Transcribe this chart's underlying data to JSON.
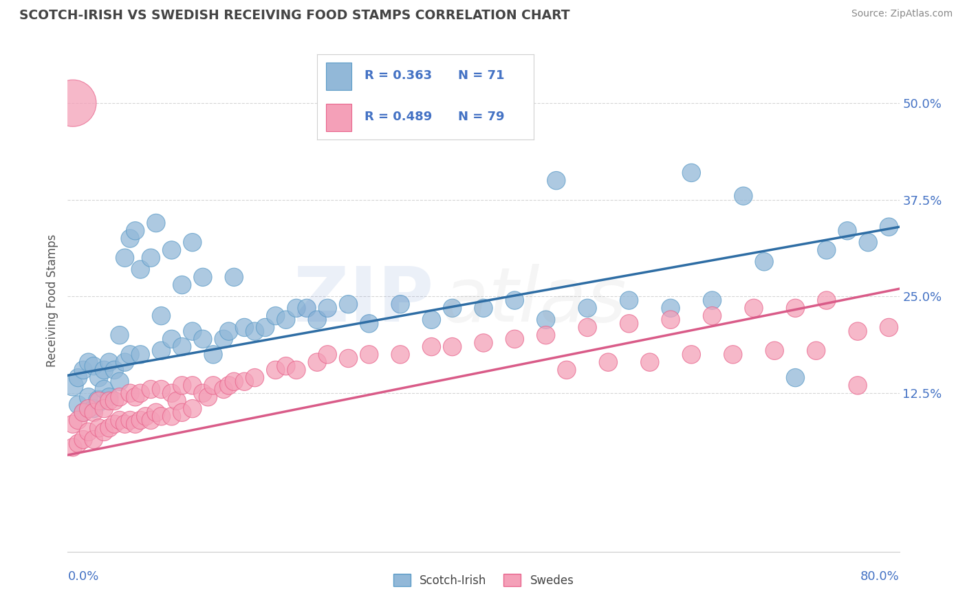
{
  "title": "SCOTCH-IRISH VS SWEDISH RECEIVING FOOD STAMPS CORRELATION CHART",
  "source": "Source: ZipAtlas.com",
  "ylabel": "Receiving Food Stamps",
  "xmin": 0.0,
  "xmax": 0.8,
  "ymin": -0.08,
  "ymax": 0.57,
  "blue_R": 0.363,
  "blue_N": 71,
  "pink_R": 0.489,
  "pink_N": 79,
  "blue_color": "#92b8d8",
  "pink_color": "#f4a0b8",
  "blue_edge_color": "#5b9bc7",
  "pink_edge_color": "#e8648c",
  "blue_line_color": "#2e6da4",
  "pink_line_color": "#d95b88",
  "legend_label_blue": "Scotch-Irish",
  "legend_label_pink": "Swedes",
  "ytick_vals": [
    0.125,
    0.25,
    0.375,
    0.5
  ],
  "ytick_labels": [
    "12.5%",
    "25.0%",
    "37.5%",
    "50.0%"
  ],
  "blue_scatter_x": [
    0.005,
    0.01,
    0.01,
    0.015,
    0.015,
    0.02,
    0.02,
    0.025,
    0.025,
    0.03,
    0.03,
    0.035,
    0.035,
    0.04,
    0.04,
    0.045,
    0.05,
    0.05,
    0.055,
    0.055,
    0.06,
    0.06,
    0.065,
    0.07,
    0.07,
    0.08,
    0.085,
    0.09,
    0.09,
    0.1,
    0.1,
    0.11,
    0.11,
    0.12,
    0.12,
    0.13,
    0.13,
    0.14,
    0.15,
    0.155,
    0.16,
    0.17,
    0.18,
    0.19,
    0.2,
    0.21,
    0.22,
    0.23,
    0.24,
    0.25,
    0.27,
    0.29,
    0.32,
    0.35,
    0.37,
    0.4,
    0.43,
    0.46,
    0.5,
    0.54,
    0.58,
    0.62,
    0.67,
    0.7,
    0.73,
    0.75,
    0.77,
    0.79,
    0.47,
    0.6,
    0.65
  ],
  "blue_scatter_y": [
    0.135,
    0.11,
    0.145,
    0.1,
    0.155,
    0.12,
    0.165,
    0.105,
    0.16,
    0.115,
    0.145,
    0.13,
    0.155,
    0.12,
    0.165,
    0.155,
    0.14,
    0.2,
    0.165,
    0.3,
    0.175,
    0.325,
    0.335,
    0.175,
    0.285,
    0.3,
    0.345,
    0.18,
    0.225,
    0.195,
    0.31,
    0.185,
    0.265,
    0.205,
    0.32,
    0.195,
    0.275,
    0.175,
    0.195,
    0.205,
    0.275,
    0.21,
    0.205,
    0.21,
    0.225,
    0.22,
    0.235,
    0.235,
    0.22,
    0.235,
    0.24,
    0.215,
    0.24,
    0.22,
    0.235,
    0.235,
    0.245,
    0.22,
    0.235,
    0.245,
    0.235,
    0.245,
    0.295,
    0.145,
    0.31,
    0.335,
    0.32,
    0.34,
    0.4,
    0.41,
    0.38
  ],
  "blue_scatter_size": [
    40,
    30,
    30,
    30,
    30,
    30,
    30,
    30,
    30,
    40,
    30,
    30,
    30,
    30,
    30,
    30,
    30,
    30,
    30,
    30,
    30,
    30,
    30,
    30,
    30,
    30,
    30,
    30,
    30,
    30,
    30,
    30,
    30,
    30,
    30,
    30,
    30,
    30,
    30,
    30,
    30,
    30,
    30,
    30,
    30,
    30,
    30,
    30,
    30,
    30,
    30,
    30,
    30,
    30,
    30,
    30,
    30,
    30,
    30,
    30,
    30,
    30,
    30,
    30,
    30,
    30,
    30,
    30,
    30,
    30,
    30
  ],
  "pink_scatter_x": [
    0.005,
    0.005,
    0.01,
    0.01,
    0.015,
    0.015,
    0.02,
    0.02,
    0.025,
    0.025,
    0.03,
    0.03,
    0.035,
    0.035,
    0.04,
    0.04,
    0.045,
    0.045,
    0.05,
    0.05,
    0.055,
    0.06,
    0.06,
    0.065,
    0.065,
    0.07,
    0.07,
    0.075,
    0.08,
    0.08,
    0.085,
    0.09,
    0.09,
    0.1,
    0.1,
    0.105,
    0.11,
    0.11,
    0.12,
    0.12,
    0.13,
    0.135,
    0.14,
    0.15,
    0.155,
    0.16,
    0.17,
    0.18,
    0.2,
    0.21,
    0.22,
    0.24,
    0.25,
    0.27,
    0.29,
    0.32,
    0.35,
    0.37,
    0.4,
    0.43,
    0.46,
    0.5,
    0.54,
    0.58,
    0.62,
    0.66,
    0.7,
    0.73,
    0.76,
    0.79,
    0.48,
    0.52,
    0.56,
    0.6,
    0.64,
    0.68,
    0.72,
    0.76,
    0.005
  ],
  "pink_scatter_y": [
    0.055,
    0.085,
    0.06,
    0.09,
    0.065,
    0.1,
    0.075,
    0.105,
    0.065,
    0.1,
    0.08,
    0.115,
    0.075,
    0.105,
    0.08,
    0.115,
    0.085,
    0.115,
    0.09,
    0.12,
    0.085,
    0.09,
    0.125,
    0.085,
    0.12,
    0.09,
    0.125,
    0.095,
    0.09,
    0.13,
    0.1,
    0.095,
    0.13,
    0.095,
    0.125,
    0.115,
    0.1,
    0.135,
    0.105,
    0.135,
    0.125,
    0.12,
    0.135,
    0.13,
    0.135,
    0.14,
    0.14,
    0.145,
    0.155,
    0.16,
    0.155,
    0.165,
    0.175,
    0.17,
    0.175,
    0.175,
    0.185,
    0.185,
    0.19,
    0.195,
    0.2,
    0.21,
    0.215,
    0.22,
    0.225,
    0.235,
    0.235,
    0.245,
    0.205,
    0.21,
    0.155,
    0.165,
    0.165,
    0.175,
    0.175,
    0.18,
    0.18,
    0.135,
    0.5
  ],
  "pink_scatter_size": [
    30,
    30,
    30,
    30,
    30,
    30,
    30,
    30,
    30,
    30,
    30,
    30,
    30,
    30,
    30,
    30,
    30,
    30,
    30,
    30,
    30,
    30,
    30,
    30,
    30,
    30,
    30,
    30,
    30,
    30,
    30,
    30,
    30,
    30,
    30,
    30,
    30,
    30,
    30,
    30,
    30,
    30,
    30,
    30,
    30,
    30,
    30,
    30,
    30,
    30,
    30,
    30,
    30,
    30,
    30,
    30,
    30,
    30,
    30,
    30,
    30,
    30,
    30,
    30,
    30,
    30,
    30,
    30,
    30,
    30,
    30,
    30,
    30,
    30,
    30,
    30,
    30,
    30,
    200
  ],
  "blue_trendline_x": [
    0.0,
    0.8
  ],
  "blue_trendline_y": [
    0.148,
    0.34
  ],
  "pink_trendline_x": [
    0.0,
    0.8
  ],
  "pink_trendline_y": [
    0.045,
    0.26
  ],
  "grid_color": "#cccccc",
  "bg_color": "#ffffff",
  "title_color": "#444444",
  "ylabel_color": "#555555",
  "tick_label_color": "#4472c4",
  "source_color": "#888888"
}
